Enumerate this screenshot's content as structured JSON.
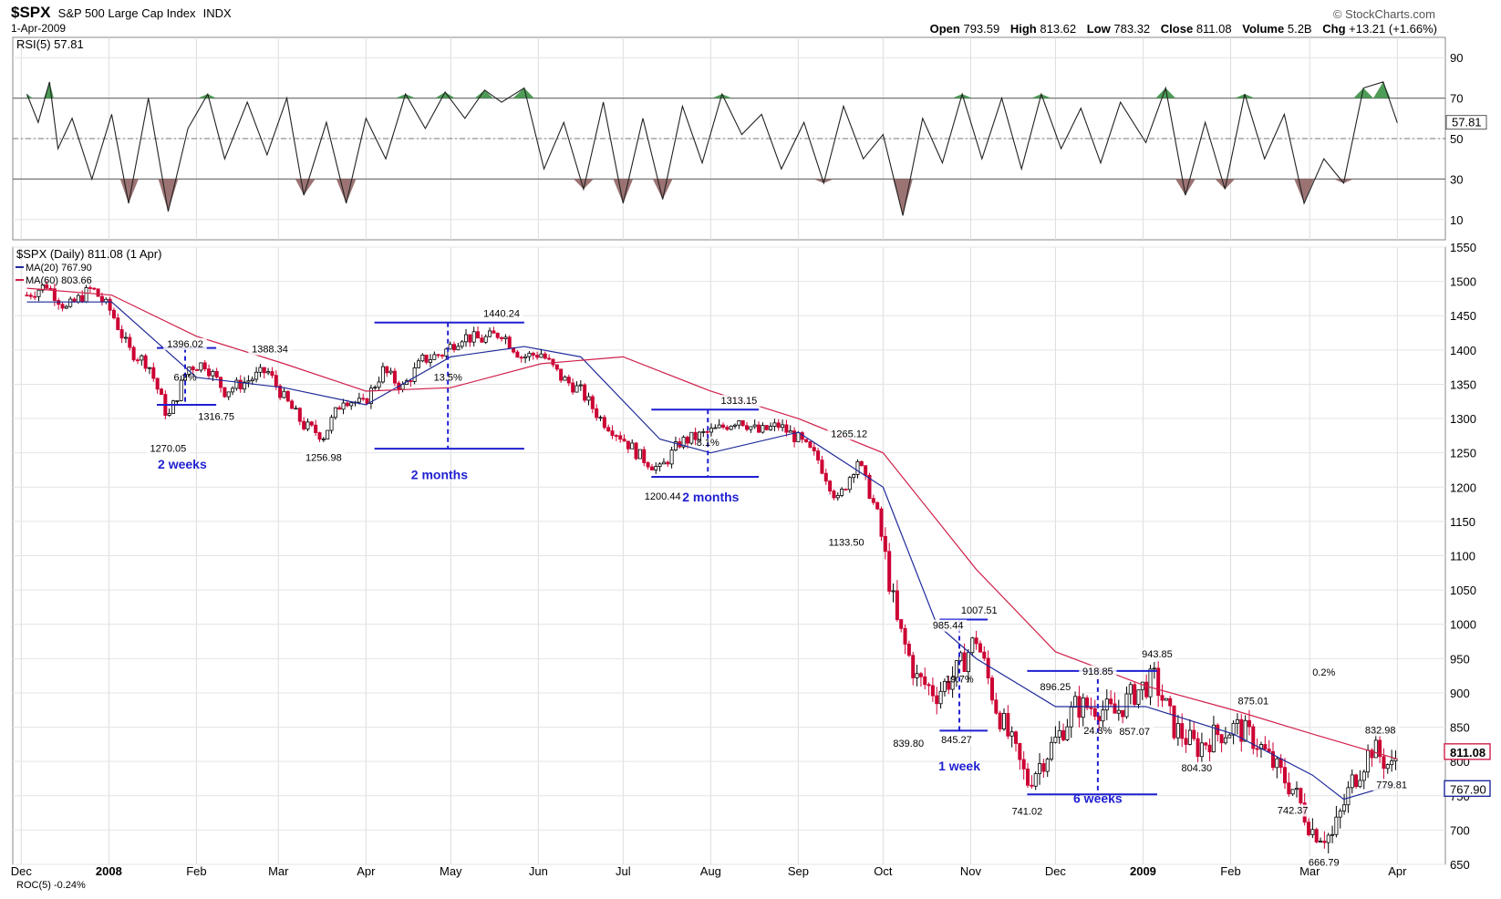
{
  "header": {
    "symbol": "$SPX",
    "name": "S&P 500 Large Cap Index",
    "exchange": "INDX",
    "date": "1-Apr-2009",
    "credit": "© StockCharts.com",
    "ohlc": {
      "open_label": "Open",
      "open": "793.59",
      "high_label": "High",
      "high": "813.62",
      "low_label": "Low",
      "low": "783.32",
      "close_label": "Close",
      "close": "811.08",
      "volume_label": "Volume",
      "volume": "5.2B",
      "chg_label": "Chg",
      "chg": "+13.21 (+1.66%)"
    }
  },
  "colors": {
    "up": "#000000",
    "down": "#cc0033",
    "ma20": "#1f2a99",
    "ma60": "#d0204a",
    "annot": "#1f1fd1",
    "rsi_high": "#2e8b3a",
    "rsi_low": "#8b5a5a"
  },
  "chart_data": [
    {
      "type": "line",
      "panel": "RSI",
      "legend": "RSI(5) 57.81",
      "current": 57.81,
      "ylim": [
        0,
        100
      ],
      "yticks": [
        10,
        30,
        50,
        70,
        90
      ],
      "reference_lines": [
        30,
        50,
        70
      ],
      "series": [
        {
          "x_dates": [
            "2007-12-03",
            "2007-12-07",
            "2007-12-11",
            "2007-12-14",
            "2007-12-19",
            "2007-12-26",
            "2008-01-02",
            "2008-01-08",
            "2008-01-15",
            "2008-01-22",
            "2008-01-29",
            "2008-02-05",
            "2008-02-11",
            "2008-02-19",
            "2008-02-26",
            "2008-03-04",
            "2008-03-10",
            "2008-03-18",
            "2008-03-25",
            "2008-04-01",
            "2008-04-08",
            "2008-04-15",
            "2008-04-22",
            "2008-04-29",
            "2008-05-06",
            "2008-05-13",
            "2008-05-19",
            "2008-05-27",
            "2008-06-03",
            "2008-06-10",
            "2008-06-17",
            "2008-06-24",
            "2008-07-01",
            "2008-07-08",
            "2008-07-15",
            "2008-07-22",
            "2008-07-29",
            "2008-08-05",
            "2008-08-12",
            "2008-08-19",
            "2008-08-26",
            "2008-09-03",
            "2008-09-10",
            "2008-09-17",
            "2008-09-24",
            "2008-10-01",
            "2008-10-08",
            "2008-10-15",
            "2008-10-22",
            "2008-10-29",
            "2008-11-05",
            "2008-11-12",
            "2008-11-19",
            "2008-11-26",
            "2008-12-03",
            "2008-12-10",
            "2008-12-17",
            "2008-12-24",
            "2009-01-02",
            "2009-01-09",
            "2009-01-16",
            "2009-01-23",
            "2009-01-30",
            "2009-02-06",
            "2009-02-13",
            "2009-02-20",
            "2009-02-27",
            "2009-03-06",
            "2009-03-13",
            "2009-03-20",
            "2009-03-27",
            "2009-04-01"
          ],
          "values": [
            72,
            58,
            78,
            45,
            60,
            30,
            62,
            18,
            70,
            14,
            55,
            72,
            40,
            68,
            42,
            70,
            22,
            58,
            18,
            60,
            40,
            72,
            55,
            73,
            60,
            74,
            68,
            75,
            35,
            58,
            25,
            68,
            18,
            60,
            20,
            66,
            38,
            72,
            52,
            62,
            35,
            58,
            28,
            66,
            40,
            52,
            12,
            60,
            38,
            72,
            40,
            70,
            35,
            72,
            45,
            65,
            38,
            68,
            48,
            75,
            22,
            58,
            25,
            72,
            40,
            62,
            18,
            40,
            28,
            75,
            78,
            57.81
          ]
        }
      ]
    },
    {
      "type": "candlestick",
      "panel": "Price",
      "legend": "$SPX (Daily) 811.08 (1 Apr)",
      "ylim": [
        650,
        1550
      ],
      "yticks": [
        650,
        700,
        750,
        800,
        850,
        900,
        950,
        1000,
        1050,
        1100,
        1150,
        1200,
        1250,
        1300,
        1350,
        1400,
        1450,
        1500,
        1550
      ],
      "x_labels": [
        "Dec",
        "2008",
        "Feb",
        "Mar",
        "Apr",
        "May",
        "Jun",
        "Jul",
        "Aug",
        "Sep",
        "Oct",
        "Nov",
        "Dec",
        "2009",
        "Feb",
        "Mar",
        "Apr"
      ],
      "close_points": [
        [
          "2007-12-03",
          1480
        ],
        [
          "2007-12-10",
          1495
        ],
        [
          "2007-12-17",
          1460
        ],
        [
          "2007-12-26",
          1490
        ],
        [
          "2008-01-02",
          1455
        ],
        [
          "2008-01-08",
          1400
        ],
        [
          "2008-01-15",
          1380
        ],
        [
          "2008-01-22",
          1300
        ],
        [
          "2008-01-29",
          1375
        ],
        [
          "2008-02-04",
          1380
        ],
        [
          "2008-02-11",
          1340
        ],
        [
          "2008-02-19",
          1355
        ],
        [
          "2008-02-26",
          1370
        ],
        [
          "2008-03-03",
          1330
        ],
        [
          "2008-03-10",
          1290
        ],
        [
          "2008-03-17",
          1275
        ],
        [
          "2008-03-24",
          1330
        ],
        [
          "2008-03-31",
          1320
        ],
        [
          "2008-04-07",
          1370
        ],
        [
          "2008-04-14",
          1345
        ],
        [
          "2008-04-21",
          1385
        ],
        [
          "2008-04-28",
          1395
        ],
        [
          "2008-05-05",
          1420
        ],
        [
          "2008-05-12",
          1415
        ],
        [
          "2008-05-19",
          1425
        ],
        [
          "2008-05-26",
          1390
        ],
        [
          "2008-06-02",
          1395
        ],
        [
          "2008-06-09",
          1360
        ],
        [
          "2008-06-16",
          1340
        ],
        [
          "2008-06-23",
          1300
        ],
        [
          "2008-06-30",
          1275
        ],
        [
          "2008-07-07",
          1245
        ],
        [
          "2008-07-14",
          1225
        ],
        [
          "2008-07-21",
          1265
        ],
        [
          "2008-07-28",
          1275
        ],
        [
          "2008-08-04",
          1285
        ],
        [
          "2008-08-11",
          1300
        ],
        [
          "2008-08-18",
          1280
        ],
        [
          "2008-08-25",
          1290
        ],
        [
          "2008-09-01",
          1270
        ],
        [
          "2008-09-08",
          1240
        ],
        [
          "2008-09-15",
          1180
        ],
        [
          "2008-09-22",
          1240
        ],
        [
          "2008-09-29",
          1160
        ],
        [
          "2008-10-06",
          1000
        ],
        [
          "2008-10-13",
          920
        ],
        [
          "2008-10-20",
          900
        ],
        [
          "2008-10-27",
          930
        ],
        [
          "2008-11-03",
          980
        ],
        [
          "2008-11-10",
          880
        ],
        [
          "2008-11-17",
          810
        ],
        [
          "2008-11-21",
          770
        ],
        [
          "2008-12-01",
          830
        ],
        [
          "2008-12-08",
          880
        ],
        [
          "2008-12-15",
          880
        ],
        [
          "2008-12-22",
          870
        ],
        [
          "2008-12-29",
          900
        ],
        [
          "2009-01-05",
          920
        ],
        [
          "2009-01-12",
          850
        ],
        [
          "2009-01-20",
          820
        ],
        [
          "2009-01-27",
          840
        ],
        [
          "2009-02-03",
          850
        ],
        [
          "2009-02-10",
          830
        ],
        [
          "2009-02-17",
          790
        ],
        [
          "2009-02-23",
          760
        ],
        [
          "2009-03-02",
          700
        ],
        [
          "2009-03-09",
          690
        ],
        [
          "2009-03-16",
          770
        ],
        [
          "2009-03-23",
          820
        ],
        [
          "2009-03-30",
          790
        ],
        [
          "2009-04-01",
          811.08
        ]
      ],
      "series": [
        {
          "name": "MA(20) 767.90",
          "value_now": 767.9,
          "points": [
            [
              "2007-12-03",
              1470
            ],
            [
              "2008-01-02",
              1470
            ],
            [
              "2008-02-01",
              1360
            ],
            [
              "2008-03-03",
              1345
            ],
            [
              "2008-04-01",
              1320
            ],
            [
              "2008-05-01",
              1390
            ],
            [
              "2008-05-27",
              1405
            ],
            [
              "2008-06-16",
              1390
            ],
            [
              "2008-07-14",
              1270
            ],
            [
              "2008-08-01",
              1250
            ],
            [
              "2008-09-01",
              1280
            ],
            [
              "2008-10-01",
              1200
            ],
            [
              "2008-10-20",
              1000
            ],
            [
              "2008-11-03",
              950
            ],
            [
              "2008-12-01",
              880
            ],
            [
              "2009-01-02",
              880
            ],
            [
              "2009-02-02",
              840
            ],
            [
              "2009-03-02",
              780
            ],
            [
              "2009-03-13",
              745
            ],
            [
              "2009-04-01",
              767.9
            ]
          ]
        },
        {
          "name": "MA(60) 803.66",
          "value_now": 803.66,
          "points": [
            [
              "2007-12-03",
              1490
            ],
            [
              "2008-01-02",
              1480
            ],
            [
              "2008-02-01",
              1420
            ],
            [
              "2008-03-03",
              1380
            ],
            [
              "2008-04-01",
              1340
            ],
            [
              "2008-05-01",
              1345
            ],
            [
              "2008-06-02",
              1380
            ],
            [
              "2008-07-01",
              1390
            ],
            [
              "2008-08-01",
              1340
            ],
            [
              "2008-09-01",
              1300
            ],
            [
              "2008-10-01",
              1250
            ],
            [
              "2008-11-03",
              1080
            ],
            [
              "2008-12-01",
              960
            ],
            [
              "2009-01-02",
              910
            ],
            [
              "2009-02-02",
              875
            ],
            [
              "2009-03-02",
              840
            ],
            [
              "2009-04-01",
              803.66
            ]
          ]
        }
      ],
      "price_labels": [
        {
          "text": "1396.02",
          "date": "2008-01-28",
          "price": 1396.02
        },
        {
          "text": "1388.34",
          "date": "2008-02-27",
          "price": 1388.34
        },
        {
          "text": "1316.75",
          "date": "2008-02-08",
          "price": 1316.75
        },
        {
          "text": "1270.05",
          "date": "2008-01-22",
          "price": 1270.05
        },
        {
          "text": "1256.98",
          "date": "2008-03-17",
          "price": 1256.98
        },
        {
          "text": "1440.24",
          "date": "2008-05-19",
          "price": 1440.24
        },
        {
          "text": "1313.15",
          "date": "2008-08-11",
          "price": 1313.15
        },
        {
          "text": "1200.44",
          "date": "2008-07-15",
          "price": 1200.44
        },
        {
          "text": "1265.12",
          "date": "2008-09-19",
          "price": 1265.12
        },
        {
          "text": "1133.50",
          "date": "2008-09-18",
          "price": 1133.5
        },
        {
          "text": "985.44",
          "date": "2008-10-24",
          "price": 985.44
        },
        {
          "text": "1007.51",
          "date": "2008-11-04",
          "price": 1007.51
        },
        {
          "text": "839.80",
          "date": "2008-10-10",
          "price": 839.8
        },
        {
          "text": "845.27",
          "date": "2008-10-27",
          "price": 845.27
        },
        {
          "text": "896.25",
          "date": "2008-12-01",
          "price": 896.25
        },
        {
          "text": "918.85",
          "date": "2008-12-16",
          "price": 918.85
        },
        {
          "text": "943.85",
          "date": "2009-01-06",
          "price": 943.85
        },
        {
          "text": "857.07",
          "date": "2008-12-29",
          "price": 857.07
        },
        {
          "text": "741.02",
          "date": "2008-11-21",
          "price": 741.02
        },
        {
          "text": "875.01",
          "date": "2009-02-09",
          "price": 875.01
        },
        {
          "text": "804.30",
          "date": "2009-01-20",
          "price": 804.3
        },
        {
          "text": "742.37",
          "date": "2009-02-23",
          "price": 742.37
        },
        {
          "text": "666.79",
          "date": "2009-03-06",
          "price": 666.79
        },
        {
          "text": "832.98",
          "date": "2009-03-26",
          "price": 832.98
        },
        {
          "text": "779.81",
          "date": "2009-03-30",
          "price": 779.81
        }
      ],
      "annotations": [
        {
          "text": "6.2%",
          "date": "2008-01-28",
          "price": 1355
        },
        {
          "text": "13.5%",
          "date": "2008-04-30",
          "price": 1355
        },
        {
          "text": "8.1%",
          "date": "2008-07-31",
          "price": 1260
        },
        {
          "text": "19.7%",
          "date": "2008-10-28",
          "price": 915
        },
        {
          "text": "24.3%",
          "date": "2008-12-16",
          "price": 840
        },
        {
          "text": "0.2%",
          "date": "2009-03-06",
          "price": 925
        }
      ],
      "duration_labels": [
        {
          "text": "2 weeks",
          "date": "2008-01-27",
          "price": 1227
        },
        {
          "text": "2 months",
          "date": "2008-04-27",
          "price": 1212
        },
        {
          "text": "2 months",
          "date": "2008-08-01",
          "price": 1179
        },
        {
          "text": "1 week",
          "date": "2008-10-28",
          "price": 787
        },
        {
          "text": "6 weeks",
          "date": "2008-12-16",
          "price": 740
        }
      ],
      "range_markers": [
        {
          "d1": "2008-01-18",
          "d2": "2008-02-08",
          "top": 1403,
          "bottom": 1320,
          "mid": "2008-01-28"
        },
        {
          "d1": "2008-04-04",
          "d2": "2008-05-27",
          "top": 1440,
          "bottom": 1256,
          "mid": "2008-04-30"
        },
        {
          "d1": "2008-07-11",
          "d2": "2008-08-18",
          "top": 1313,
          "bottom": 1215,
          "mid": "2008-07-31"
        },
        {
          "d1": "2008-10-21",
          "d2": "2008-11-07",
          "top": 1007,
          "bottom": 845,
          "mid": "2008-10-28"
        },
        {
          "d1": "2008-11-21",
          "d2": "2009-01-06",
          "top": 932,
          "bottom": 752,
          "mid": "2008-12-16"
        }
      ],
      "price_tags": [
        {
          "text": "811.08",
          "price": 811.08
        },
        {
          "text": "767.90",
          "price": 767.9
        }
      ],
      "next_panel_stub": "ROC(5) -0.24%"
    }
  ]
}
